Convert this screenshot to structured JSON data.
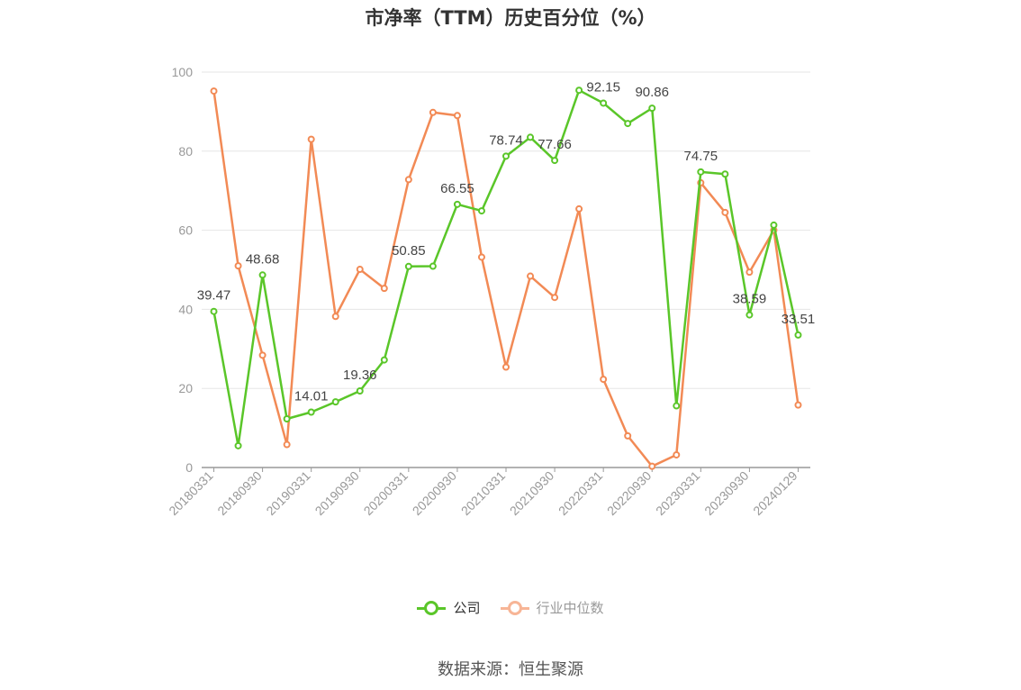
{
  "chart_data": {
    "type": "line",
    "title": "市净率（TTM）历史百分位（%）",
    "source": "数据来源：恒生聚源",
    "ylim": [
      0,
      100
    ],
    "yticks": [
      0,
      20,
      40,
      60,
      80,
      100
    ],
    "grid": true,
    "legend_position": "bottom",
    "x": [
      "20180331",
      "20180630",
      "20180930",
      "20181231",
      "20190331",
      "20190630",
      "20190930",
      "20191231",
      "20200331",
      "20200630",
      "20200930",
      "20201231",
      "20210331",
      "20210630",
      "20210930",
      "20211231",
      "20220331",
      "20220630",
      "20220930",
      "20221231",
      "20230331",
      "20230630",
      "20230930",
      "20231231",
      "20240129"
    ],
    "x_tick_labels": [
      "20180331",
      "20180930",
      "20190331",
      "20190930",
      "20200331",
      "20200930",
      "20210331",
      "20210930",
      "20220331",
      "20220930",
      "20230331",
      "20230930",
      "20240129"
    ],
    "series": [
      {
        "name": "公司",
        "color": "#5ac629",
        "values": [
          39.47,
          5.5,
          48.68,
          12.3,
          14.01,
          16.6,
          19.36,
          27.2,
          50.85,
          50.9,
          66.55,
          64.9,
          78.74,
          83.5,
          77.66,
          95.4,
          92.15,
          87.0,
          90.86,
          15.6,
          74.75,
          74.2,
          38.59,
          61.3,
          33.51
        ],
        "labels": [
          "39.47",
          "",
          "48.68",
          "",
          "14.01",
          "",
          "19.36",
          "",
          "50.85",
          "",
          "66.55",
          "",
          "78.74",
          "",
          "77.66",
          "",
          "92.15",
          "",
          "90.86",
          "",
          "74.75",
          "",
          "38.59",
          "",
          "33.51"
        ]
      },
      {
        "name": "行业中位数",
        "color": "#f28a55",
        "values": [
          95.2,
          51.0,
          28.4,
          5.8,
          83.0,
          38.2,
          50.1,
          45.3,
          72.8,
          89.8,
          89.0,
          53.2,
          25.4,
          48.4,
          43.0,
          65.4,
          22.3,
          8.0,
          0.3,
          3.2,
          72.0,
          64.5,
          49.4,
          60.0,
          15.8
        ]
      }
    ]
  }
}
